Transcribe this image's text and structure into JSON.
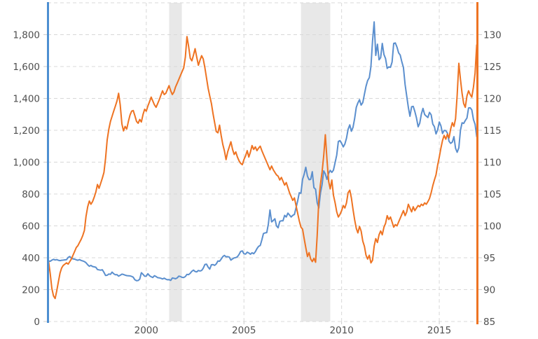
{
  "chart_data": {
    "type": "line",
    "title": "",
    "x_axis": {
      "domain": [
        1994.95,
        2016.97
      ],
      "ticks": [
        2000,
        2005,
        2010,
        2015
      ],
      "tick_labels": [
        "2000",
        "2005",
        "2010",
        "2015"
      ]
    },
    "left_axis": {
      "range": [
        0,
        2000
      ],
      "tick_values": [
        0,
        200,
        400,
        600,
        800,
        1000,
        1200,
        1400,
        1600,
        1800
      ],
      "tick_labels": [
        "0",
        "200",
        "400",
        "600",
        "800",
        "1,000",
        "1,200",
        "1,400",
        "1,600",
        "1,800"
      ],
      "spine_color": "#4d8fd1"
    },
    "right_axis": {
      "range": [
        85,
        135
      ],
      "tick_values": [
        85,
        90,
        95,
        100,
        105,
        110,
        115,
        120,
        125,
        130
      ],
      "tick_labels": [
        "85",
        "90",
        "95",
        "100",
        "105",
        "110",
        "115",
        "120",
        "125",
        "130"
      ],
      "spine_color": "#ee7322"
    },
    "grid": {
      "color": "#d8d8d8",
      "dash": "5,4",
      "horizontal_step_left": 200,
      "vertical_at_x_ticks": true
    },
    "recession_bands": {
      "color": "#e8e8e8",
      "intervals": [
        [
          2001.17,
          2001.82
        ],
        [
          2007.92,
          2009.42
        ]
      ]
    },
    "series": [
      {
        "name": "blue-series-left-axis",
        "axis": "left",
        "color": "#5b8fce",
        "x_start": 1995.0,
        "x_step": 0.0833333,
        "values": [
          380,
          378,
          385,
          390,
          386,
          388,
          384,
          382,
          384,
          385,
          387,
          388,
          402,
          408,
          397,
          393,
          391,
          387,
          384,
          388,
          383,
          380,
          376,
          369,
          356,
          347,
          352,
          345,
          343,
          340,
          326,
          324,
          322,
          325,
          308,
          289,
          290,
          298,
          296,
          310,
          300,
          293,
          294,
          285,
          290,
          297,
          295,
          291,
          288,
          287,
          286,
          283,
          278,
          262,
          256,
          257,
          266,
          306,
          296,
          284,
          285,
          300,
          287,
          281,
          276,
          287,
          282,
          275,
          274,
          271,
          267,
          272,
          266,
          262,
          263,
          258,
          273,
          271,
          268,
          274,
          285,
          282,
          277,
          276,
          282,
          296,
          294,
          303,
          315,
          322,
          314,
          311,
          320,
          317,
          320,
          334,
          358,
          360,
          341,
          329,
          356,
          357,
          352,
          361,
          380,
          378,
          391,
          407,
          415,
          406,
          407,
          404,
          385,
          393,
          399,
          401,
          406,
          421,
          440,
          443,
          425,
          423,
          435,
          430,
          422,
          431,
          425,
          438,
          457,
          471,
          477,
          512,
          552,
          556,
          558,
          612,
          700,
          625,
          634,
          645,
          600,
          588,
          628,
          632,
          632,
          666,
          656,
          680,
          668,
          656,
          666,
          672,
          714,
          756,
          808,
          805,
          892,
          924,
          968,
          912,
          890,
          892,
          940,
          840,
          830,
          745,
          712,
          805,
          860,
          945,
          926,
          892,
          930,
          948,
          936,
          950,
          998,
          1045,
          1130,
          1135,
          1118,
          1096,
          1114,
          1150,
          1206,
          1234,
          1194,
          1218,
          1272,
          1344,
          1372,
          1392,
          1358,
          1374,
          1426,
          1476,
          1512,
          1530,
          1600,
          1760,
          1880,
          1670,
          1740,
          1642,
          1656,
          1745,
          1675,
          1650,
          1588,
          1598,
          1595,
          1628,
          1745,
          1748,
          1722,
          1686,
          1672,
          1630,
          1594,
          1486,
          1415,
          1344,
          1288,
          1348,
          1350,
          1318,
          1278,
          1222,
          1245,
          1302,
          1337,
          1299,
          1289,
          1280,
          1312,
          1297,
          1239,
          1223,
          1177,
          1202,
          1252,
          1228,
          1180,
          1199,
          1198,
          1182,
          1131,
          1118,
          1126,
          1160,
          1087,
          1062,
          1090,
          1200,
          1247,
          1243,
          1261,
          1277,
          1340,
          1341,
          1328,
          1267,
          1238,
          1160
        ]
      },
      {
        "name": "orange-series-right-axis",
        "axis": "right",
        "color": "#ee7322",
        "x_start": 1995.0,
        "x_step": 0.0833333,
        "values": [
          94.4,
          92.5,
          90.2,
          89.0,
          88.6,
          89.8,
          91.2,
          92.6,
          93.4,
          93.8,
          94.0,
          94.2,
          94.0,
          94.4,
          94.8,
          95.4,
          96.0,
          96.6,
          96.9,
          97.4,
          97.9,
          98.5,
          99.3,
          101.5,
          103.0,
          103.9,
          103.4,
          103.8,
          104.5,
          105.3,
          106.5,
          105.9,
          106.7,
          107.5,
          108.4,
          110.6,
          113.5,
          115.2,
          116.4,
          117.2,
          118.0,
          118.8,
          119.6,
          120.8,
          119.0,
          116.0,
          114.9,
          115.6,
          115.2,
          116.4,
          117.4,
          118.0,
          118.1,
          117.3,
          116.4,
          116.1,
          116.7,
          116.3,
          117.5,
          118.3,
          118.0,
          118.8,
          119.5,
          120.2,
          119.6,
          119.0,
          118.6,
          119.2,
          119.8,
          120.5,
          121.2,
          120.6,
          120.8,
          121.4,
          122.0,
          121.2,
          120.6,
          121.0,
          121.8,
          122.4,
          123.0,
          123.6,
          124.2,
          124.8,
          126.5,
          129.7,
          128.2,
          126.3,
          125.9,
          126.8,
          127.8,
          126.5,
          125.2,
          126.0,
          126.7,
          126.2,
          124.8,
          123.2,
          121.6,
          120.4,
          119.2,
          117.6,
          116.2,
          114.8,
          114.6,
          115.8,
          114.2,
          112.8,
          111.8,
          110.4,
          111.6,
          112.4,
          113.2,
          112.0,
          111.2,
          111.6,
          110.8,
          110.2,
          109.8,
          109.6,
          110.4,
          111.0,
          111.8,
          110.8,
          111.6,
          112.6,
          112.0,
          112.4,
          111.8,
          112.2,
          112.5,
          111.8,
          111.2,
          110.6,
          110.0,
          109.4,
          108.8,
          109.4,
          108.8,
          108.4,
          108.0,
          107.8,
          107.2,
          107.6,
          107.0,
          106.4,
          106.8,
          106.0,
          105.2,
          104.6,
          104.0,
          104.4,
          103.2,
          102.0,
          100.8,
          99.8,
          99.5,
          98.0,
          96.6,
          95.2,
          95.8,
          94.8,
          94.4,
          94.9,
          94.3,
          98.5,
          104.0,
          106.5,
          108.5,
          111.0,
          114.3,
          110.5,
          107.0,
          105.8,
          107.2,
          104.8,
          103.6,
          102.2,
          101.4,
          101.8,
          102.4,
          103.2,
          102.8,
          103.6,
          105.2,
          105.6,
          104.4,
          102.6,
          101.0,
          99.6,
          98.9,
          99.9,
          99.2,
          97.6,
          96.8,
          95.4,
          94.8,
          95.4,
          94.2,
          94.6,
          96.8,
          98.0,
          97.4,
          98.6,
          99.2,
          98.6,
          99.8,
          100.4,
          101.6,
          101.0,
          101.4,
          100.6,
          99.8,
          100.2,
          100.0,
          100.6,
          101.2,
          101.8,
          102.4,
          101.6,
          102.2,
          103.4,
          102.8,
          102.2,
          103.0,
          102.4,
          102.8,
          103.2,
          103.0,
          103.4,
          103.2,
          103.6,
          103.4,
          103.8,
          104.3,
          105.2,
          106.3,
          107.2,
          108.0,
          109.5,
          110.8,
          112.2,
          113.4,
          114.2,
          113.6,
          114.4,
          113.8,
          115.2,
          116.2,
          115.6,
          116.8,
          120.5,
          125.5,
          123.0,
          120.8,
          119.2,
          118.6,
          120.4,
          121.2,
          120.6,
          120.2,
          121.8,
          124.0,
          128.4
        ]
      }
    ],
    "legend": {
      "show": false
    }
  }
}
